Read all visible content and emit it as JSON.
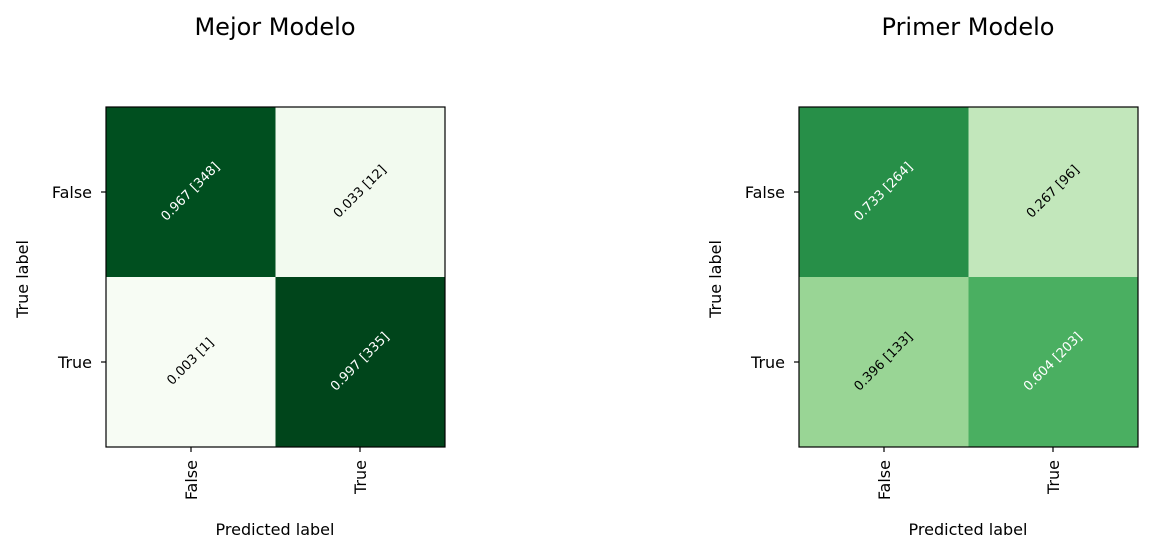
{
  "chart_data": [
    {
      "type": "heatmap",
      "title": "Mejor Modelo",
      "xlabel": "Predicted label",
      "ylabel": "True label",
      "x_categories": [
        "False",
        "True"
      ],
      "y_categories": [
        "False",
        "True"
      ],
      "values": [
        [
          0.967,
          0.033
        ],
        [
          0.003,
          0.997
        ]
      ],
      "counts": [
        [
          348,
          12
        ],
        [
          1,
          335
        ]
      ],
      "cell_labels": [
        [
          "0.967 [348]",
          "0.033 [12]"
        ],
        [
          "0.003 [1]",
          "0.997 [335]"
        ]
      ],
      "colormap": "Greens",
      "vmin": 0,
      "vmax": 1
    },
    {
      "type": "heatmap",
      "title": "Primer Modelo",
      "xlabel": "Predicted label",
      "ylabel": "True label",
      "x_categories": [
        "False",
        "True"
      ],
      "y_categories": [
        "False",
        "True"
      ],
      "values": [
        [
          0.733,
          0.267
        ],
        [
          0.396,
          0.604
        ]
      ],
      "counts": [
        [
          264,
          96
        ],
        [
          133,
          203
        ]
      ],
      "cell_labels": [
        [
          "0.733 [264]",
          "0.267 [96]"
        ],
        [
          "0.396 [133]",
          "0.604 [203]"
        ]
      ],
      "colormap": "Greens",
      "vmin": 0,
      "vmax": 1
    }
  ]
}
